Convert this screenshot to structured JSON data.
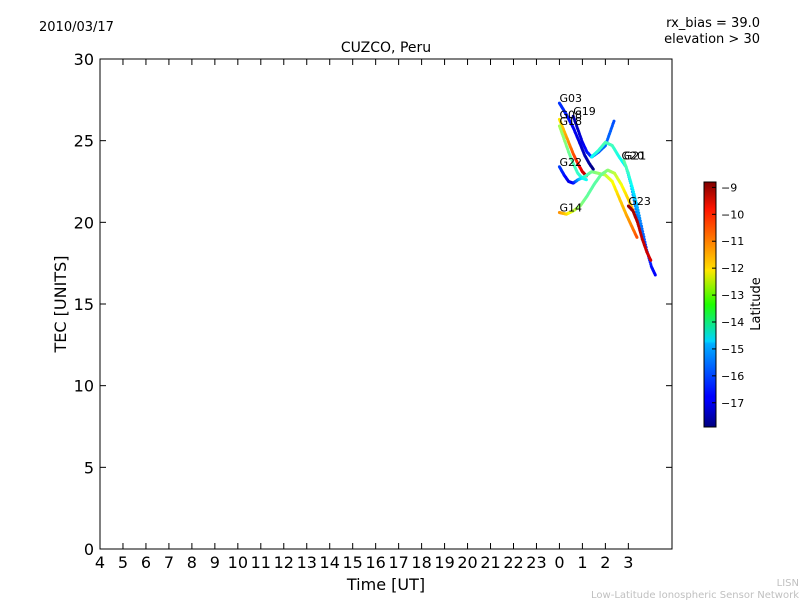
{
  "header": {
    "date": "2010/03/17",
    "rx_bias": "rx_bias = 39.0",
    "elevation": "elevation > 30"
  },
  "footer": {
    "line1": "LISN",
    "line2": "Low-Latitude Ionospheric Sensor Network"
  },
  "chart_data": {
    "type": "scatter",
    "title": "CUZCO, Peru",
    "xlabel": "Time [UT]",
    "ylabel": "TEC [UNITS]",
    "x_tick_labels": [
      "4",
      "5",
      "6",
      "7",
      "8",
      "9",
      "10",
      "11",
      "12",
      "13",
      "14",
      "15",
      "16",
      "17",
      "18",
      "19",
      "20",
      "21",
      "22",
      "23",
      "0",
      "1",
      "2",
      "3"
    ],
    "xlim_hours": [
      4,
      28.9
    ],
    "ylim": [
      0,
      30
    ],
    "y_ticks": [
      0,
      5,
      10,
      15,
      20,
      25,
      30
    ],
    "grid": false,
    "colorbar": {
      "label": "Latitude",
      "ticks": [
        -9,
        -10,
        -11,
        -12,
        -13,
        -14,
        -15,
        -16,
        -17
      ],
      "range": [
        -17.9,
        -8.8
      ]
    },
    "series": [
      {
        "name": "G03",
        "label_at": [
          24.0,
          27.3
        ],
        "points": [
          [
            24.0,
            27.3,
            -16.3
          ],
          [
            24.3,
            26.6,
            -16.5
          ],
          [
            24.6,
            25.8,
            -16.8
          ],
          [
            24.9,
            24.8,
            -17.1
          ],
          [
            25.1,
            24.1,
            -17.4
          ],
          [
            25.3,
            23.6,
            -17.6
          ],
          [
            25.5,
            23.2,
            -17.9
          ]
        ]
      },
      {
        "name": "G08",
        "label_at": [
          24.0,
          26.3
        ],
        "points": [
          [
            24.0,
            26.3,
            -12.0
          ],
          [
            24.2,
            25.6,
            -11.6
          ],
          [
            24.4,
            24.9,
            -11.2
          ],
          [
            24.6,
            24.2,
            -10.7
          ],
          [
            24.8,
            23.6,
            -10.2
          ],
          [
            25.0,
            23.1,
            -9.6
          ],
          [
            25.2,
            22.8,
            -9.2
          ]
        ]
      },
      {
        "name": "G18",
        "label_at": [
          24.0,
          25.9
        ],
        "points": [
          [
            24.0,
            25.9,
            -13.0
          ],
          [
            24.2,
            25.1,
            -13.2
          ],
          [
            24.4,
            24.3,
            -13.5
          ],
          [
            24.6,
            23.6,
            -13.8
          ],
          [
            24.8,
            23.0,
            -14.0
          ],
          [
            25.0,
            22.7,
            -14.2
          ],
          [
            25.2,
            22.6,
            -14.4
          ]
        ]
      },
      {
        "name": "G19",
        "label_at": [
          24.6,
          26.5
        ],
        "points": [
          [
            24.6,
            26.5,
            -17.5
          ],
          [
            24.8,
            25.7,
            -17.3
          ],
          [
            25.0,
            24.9,
            -17.0
          ],
          [
            25.2,
            24.3,
            -16.6
          ],
          [
            25.4,
            24.0,
            -16.3
          ],
          [
            25.7,
            24.3,
            -16.0
          ],
          [
            26.0,
            24.7,
            -15.8
          ],
          [
            26.2,
            25.5,
            -15.9
          ],
          [
            26.4,
            26.3,
            -16.1
          ]
        ]
      },
      {
        "name": "G22",
        "label_at": [
          24.0,
          23.4
        ],
        "points": [
          [
            24.0,
            23.4,
            -16.2
          ],
          [
            24.2,
            22.9,
            -16.6
          ],
          [
            24.4,
            22.5,
            -17.0
          ],
          [
            24.6,
            22.4,
            -16.8
          ],
          [
            24.8,
            22.6,
            -15.5
          ],
          [
            25.1,
            22.8,
            -14.1
          ],
          [
            25.4,
            23.1,
            -13.5
          ],
          [
            25.7,
            23.0,
            -13.2
          ],
          [
            26.0,
            22.9,
            -12.8
          ],
          [
            26.3,
            22.5,
            -12.3
          ],
          [
            26.6,
            21.5,
            -11.8
          ],
          [
            26.9,
            20.5,
            -11.5
          ],
          [
            27.2,
            19.6,
            -11.0
          ],
          [
            27.4,
            19.0,
            -10.6
          ]
        ]
      },
      {
        "name": "G14",
        "label_at": [
          24.0,
          20.6
        ],
        "points": [
          [
            24.0,
            20.6,
            -11.2
          ],
          [
            24.3,
            20.5,
            -11.8
          ],
          [
            24.6,
            20.7,
            -12.6
          ],
          [
            24.9,
            21.0,
            -13.2
          ],
          [
            25.2,
            21.6,
            -13.6
          ],
          [
            25.5,
            22.3,
            -13.7
          ],
          [
            25.8,
            22.9,
            -13.6
          ],
          [
            26.1,
            23.2,
            -13.3
          ],
          [
            26.4,
            23.0,
            -12.8
          ],
          [
            26.7,
            22.3,
            -12.3
          ],
          [
            27.0,
            21.4,
            -11.8
          ],
          [
            27.3,
            20.4,
            -11.4
          ],
          [
            27.5,
            19.6,
            -11.0
          ]
        ]
      },
      {
        "name": "G20",
        "label_at": [
          26.7,
          23.8
        ],
        "points": [
          [
            25.4,
            24.0,
            -14.5
          ],
          [
            25.7,
            24.4,
            -14.1
          ],
          [
            26.0,
            24.9,
            -13.8
          ],
          [
            26.3,
            24.7,
            -13.9
          ],
          [
            26.6,
            24.0,
            -14.3
          ],
          [
            26.9,
            23.4,
            -14.7
          ],
          [
            27.1,
            22.4,
            -15.1
          ],
          [
            27.3,
            21.0,
            -15.5
          ],
          [
            27.5,
            19.6,
            -15.9
          ],
          [
            27.7,
            18.6,
            -16.2
          ]
        ]
      },
      {
        "name": "G21",
        "label_at": [
          26.8,
          23.8
        ],
        "points": [
          [
            26.8,
            23.8,
            -13.6
          ],
          [
            27.0,
            23.0,
            -14.0
          ],
          [
            27.2,
            22.0,
            -14.6
          ],
          [
            27.4,
            20.9,
            -15.2
          ],
          [
            27.6,
            19.6,
            -15.8
          ],
          [
            27.8,
            18.3,
            -16.2
          ],
          [
            28.0,
            17.3,
            -16.6
          ],
          [
            28.2,
            16.7,
            -16.8
          ]
        ]
      },
      {
        "name": "G23",
        "label_at": [
          27.0,
          21.0
        ],
        "points": [
          [
            27.0,
            21.0,
            -9.0
          ],
          [
            27.2,
            20.7,
            -9.1
          ],
          [
            27.4,
            20.0,
            -9.3
          ],
          [
            27.6,
            19.0,
            -9.4
          ],
          [
            27.8,
            18.2,
            -9.5
          ],
          [
            28.0,
            17.6,
            -9.6
          ]
        ]
      }
    ]
  }
}
